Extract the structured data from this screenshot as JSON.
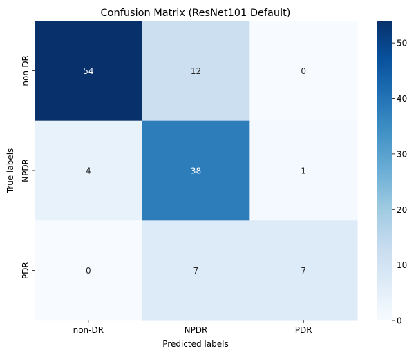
{
  "chart_data": {
    "type": "heatmap",
    "title": "Confusion Matrix (ResNet101 Default)",
    "xlabel": "Predicted labels",
    "ylabel": "True labels",
    "x_categories": [
      "non-DR",
      "NPDR",
      "PDR"
    ],
    "y_categories": [
      "non-DR",
      "NPDR",
      "PDR"
    ],
    "values": [
      [
        54,
        12,
        0
      ],
      [
        4,
        38,
        1
      ],
      [
        0,
        7,
        7
      ]
    ],
    "colorbar": {
      "range": [
        0,
        54
      ],
      "ticks": [
        0,
        10,
        20,
        30,
        40,
        50
      ]
    },
    "colormap": "Blues",
    "colors": {
      "low": "#f7fbff",
      "high": "#08306b"
    }
  }
}
